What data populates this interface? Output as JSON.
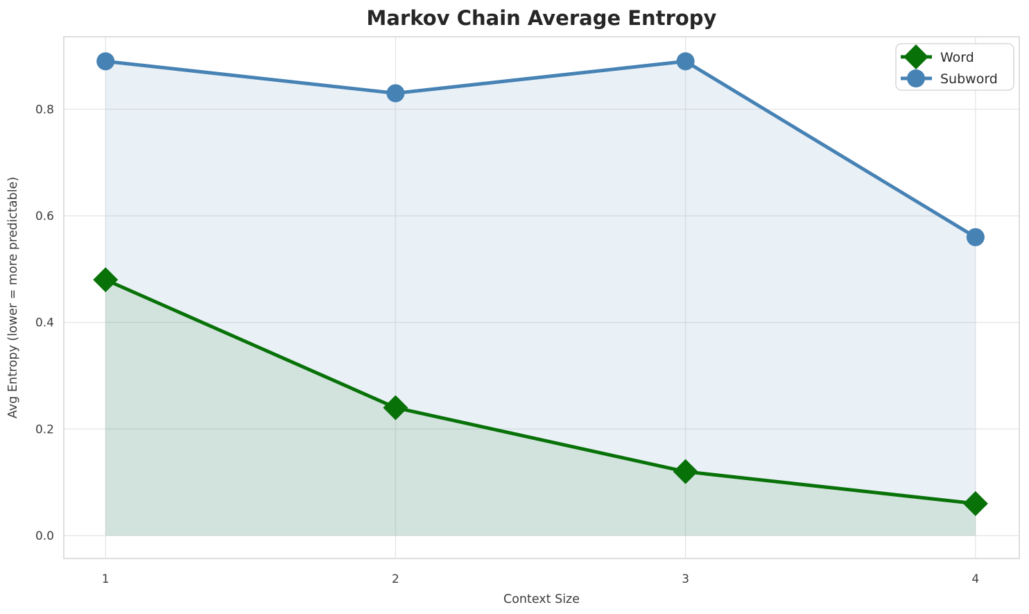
{
  "chart_data": {
    "type": "line",
    "title": "Markov Chain Average Entropy",
    "xlabel": "Context Size",
    "ylabel": "Avg Entropy (lower = more predictable)",
    "x": [
      1,
      2,
      3,
      4
    ],
    "series": [
      {
        "name": "Word",
        "values": [
          0.48,
          0.24,
          0.12,
          0.06
        ],
        "color": "#087208",
        "marker": "diamond",
        "fill_alpha": 0.1
      },
      {
        "name": "Subword",
        "values": [
          0.89,
          0.83,
          0.89,
          0.56
        ],
        "color": "#4682b4",
        "marker": "circle",
        "fill_alpha": 0.12
      }
    ],
    "xticks": [
      1,
      2,
      3,
      4
    ],
    "yticks": [
      0.0,
      0.2,
      0.4,
      0.6,
      0.8
    ],
    "xlim": [
      0.856,
      4.151
    ],
    "ylim": [
      -0.043,
      0.936
    ],
    "area_baseline": 0,
    "grid": true,
    "legend_position": "upper right",
    "colors": {
      "grid": "#e7e7e7",
      "spine": "#d4d4d4",
      "title_text": "#262626",
      "tick_text": "#3d3d3d",
      "legend_border": "#d0d0d0"
    }
  }
}
